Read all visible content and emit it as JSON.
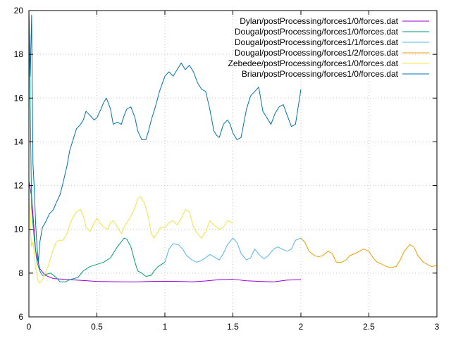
{
  "chart_data": {
    "type": "line",
    "title": "",
    "xlabel": "",
    "ylabel": "",
    "xlim": [
      0,
      3
    ],
    "ylim": [
      6,
      20
    ],
    "xticks": [
      "0",
      "0.5",
      "1",
      "1.5",
      "2",
      "2.5",
      "3"
    ],
    "yticks": [
      "6",
      "8",
      "10",
      "12",
      "14",
      "16",
      "18",
      "20"
    ],
    "grid": true,
    "legend_position": "top-right",
    "series": [
      {
        "name": "Dylan/postProcessing/forces1/0/forces.dat",
        "color": "#9400d3",
        "x": [
          0,
          0.02,
          0.05,
          0.08,
          0.12,
          0.18,
          0.25,
          0.3,
          0.35,
          0.4,
          0.5,
          0.6,
          0.7,
          0.8,
          0.9,
          1.0,
          1.1,
          1.2,
          1.3,
          1.4,
          1.5,
          1.6,
          1.7,
          1.8,
          1.9,
          2.0
        ],
        "y": [
          12.2,
          11.5,
          9.0,
          8.2,
          7.9,
          7.75,
          7.72,
          7.7,
          7.68,
          7.66,
          7.62,
          7.61,
          7.6,
          7.6,
          7.62,
          7.63,
          7.62,
          7.6,
          7.64,
          7.7,
          7.72,
          7.65,
          7.62,
          7.6,
          7.68,
          7.7
        ]
      },
      {
        "name": "Dougal/postProcessing/forces1/0/forces.dat",
        "color": "#009e73",
        "x": [
          0,
          0.02,
          0.04,
          0.06,
          0.08,
          0.1,
          0.13,
          0.16,
          0.2,
          0.23,
          0.27,
          0.3,
          0.33,
          0.36,
          0.4,
          0.45,
          0.5,
          0.55,
          0.6,
          0.65,
          0.7,
          0.72,
          0.75,
          0.78,
          0.8,
          0.83,
          0.86,
          0.9,
          0.92,
          0.95,
          1.0
        ],
        "y": [
          20.0,
          11.0,
          9.5,
          8.5,
          8.1,
          7.9,
          7.95,
          8.0,
          7.8,
          7.6,
          7.6,
          7.7,
          7.75,
          7.8,
          8.1,
          8.3,
          8.4,
          8.5,
          8.7,
          9.2,
          9.6,
          9.55,
          9.2,
          8.5,
          8.1,
          8.0,
          7.85,
          7.9,
          8.1,
          8.3,
          8.5
        ]
      },
      {
        "name": "Dougal/postProcessing/forces1/1/forces.dat",
        "color": "#56b4e9",
        "x": [
          1.0,
          1.03,
          1.06,
          1.1,
          1.13,
          1.16,
          1.2,
          1.23,
          1.26,
          1.3,
          1.33,
          1.36,
          1.4,
          1.43,
          1.46,
          1.5,
          1.53,
          1.56,
          1.6,
          1.63,
          1.66,
          1.7,
          1.73,
          1.76,
          1.8,
          1.83,
          1.86,
          1.9,
          1.93,
          1.96,
          2.0
        ],
        "y": [
          8.5,
          9.1,
          9.35,
          9.3,
          9.1,
          8.8,
          8.6,
          8.5,
          8.55,
          8.7,
          8.85,
          8.75,
          8.6,
          8.9,
          9.3,
          9.6,
          9.4,
          8.9,
          8.6,
          8.7,
          9.1,
          8.8,
          8.65,
          8.8,
          9.1,
          9.2,
          9.1,
          9.0,
          9.1,
          9.5,
          9.6
        ]
      },
      {
        "name": "Dougal/postProcessing/forces1/2/forces.dat",
        "color": "#e69f00",
        "x": [
          2.0,
          2.03,
          2.06,
          2.1,
          2.13,
          2.16,
          2.2,
          2.23,
          2.26,
          2.3,
          2.33,
          2.36,
          2.4,
          2.43,
          2.46,
          2.5,
          2.53,
          2.56,
          2.6,
          2.63,
          2.66,
          2.7,
          2.73,
          2.76,
          2.8,
          2.83,
          2.86,
          2.9,
          2.93,
          2.96,
          3.0
        ],
        "y": [
          9.6,
          9.4,
          9.0,
          8.8,
          8.75,
          8.8,
          9.0,
          8.9,
          8.5,
          8.5,
          8.6,
          8.8,
          8.9,
          9.0,
          9.1,
          9.0,
          8.7,
          8.5,
          8.4,
          8.3,
          8.25,
          8.3,
          8.6,
          9.0,
          9.3,
          9.2,
          8.8,
          8.5,
          8.4,
          8.3,
          8.35
        ]
      },
      {
        "name": "Zebedee/postProcessing/forces1/0/forces.dat",
        "color": "#f0e442",
        "x": [
          0,
          0.01,
          0.02,
          0.03,
          0.04,
          0.05,
          0.06,
          0.07,
          0.08,
          0.1,
          0.12,
          0.14,
          0.16,
          0.18,
          0.2,
          0.22,
          0.25,
          0.28,
          0.3,
          0.32,
          0.35,
          0.38,
          0.4,
          0.42,
          0.45,
          0.48,
          0.5,
          0.52,
          0.55,
          0.58,
          0.6,
          0.62,
          0.65,
          0.68,
          0.7,
          0.72,
          0.75,
          0.78,
          0.8,
          0.82,
          0.85,
          0.88,
          0.9,
          0.92,
          0.95,
          0.97,
          1.0,
          1.03,
          1.06,
          1.09,
          1.12,
          1.15,
          1.18,
          1.21,
          1.24,
          1.27,
          1.3,
          1.33,
          1.36,
          1.4,
          1.43,
          1.46,
          1.5
        ],
        "y": [
          12.0,
          10.0,
          9.2,
          9.4,
          8.9,
          8.2,
          7.9,
          7.6,
          7.55,
          7.7,
          8.0,
          8.3,
          8.7,
          9.1,
          9.4,
          9.5,
          9.5,
          9.8,
          10.2,
          10.5,
          10.8,
          10.9,
          10.6,
          10.1,
          9.9,
          10.3,
          10.5,
          10.3,
          10.1,
          10.0,
          10.3,
          10.4,
          10.1,
          9.8,
          10.1,
          10.3,
          10.6,
          11.0,
          11.4,
          11.5,
          11.2,
          10.5,
          9.8,
          9.6,
          9.9,
          10.1,
          10.1,
          10.3,
          10.4,
          10.2,
          10.5,
          10.9,
          10.8,
          10.1,
          9.8,
          9.6,
          9.9,
          10.4,
          10.2,
          10.0,
          10.1,
          10.4,
          10.3
        ]
      },
      {
        "name": "Brian/postProcessing/forces1/0/forces.dat",
        "color": "#0072b2",
        "x": [
          0,
          0.01,
          0.02,
          0.03,
          0.04,
          0.05,
          0.06,
          0.07,
          0.08,
          0.1,
          0.12,
          0.15,
          0.18,
          0.2,
          0.23,
          0.25,
          0.28,
          0.3,
          0.33,
          0.35,
          0.38,
          0.4,
          0.42,
          0.45,
          0.48,
          0.5,
          0.53,
          0.55,
          0.57,
          0.6,
          0.62,
          0.65,
          0.68,
          0.7,
          0.72,
          0.75,
          0.78,
          0.8,
          0.83,
          0.86,
          0.88,
          0.9,
          0.93,
          0.96,
          1.0,
          1.03,
          1.06,
          1.09,
          1.12,
          1.15,
          1.18,
          1.21,
          1.24,
          1.27,
          1.3,
          1.33,
          1.36,
          1.38,
          1.4,
          1.43,
          1.46,
          1.48,
          1.5,
          1.53,
          1.56,
          1.6,
          1.63,
          1.66,
          1.69,
          1.72,
          1.75,
          1.78,
          1.81,
          1.84,
          1.87,
          1.9,
          1.93,
          1.96,
          2.0
        ],
        "y": [
          20.0,
          17.0,
          19.8,
          13.0,
          11.8,
          10.2,
          9.2,
          8.5,
          9.4,
          10.1,
          10.3,
          10.7,
          10.9,
          11.2,
          11.6,
          12.1,
          12.9,
          13.6,
          14.2,
          14.6,
          14.8,
          15.0,
          15.4,
          15.2,
          15.0,
          15.1,
          15.5,
          15.8,
          16.0,
          15.5,
          14.8,
          14.9,
          14.8,
          15.2,
          15.5,
          15.6,
          15.1,
          14.5,
          14.1,
          14.1,
          14.5,
          15.0,
          15.6,
          16.3,
          17.0,
          17.2,
          17.0,
          17.3,
          17.6,
          17.3,
          17.5,
          17.2,
          16.7,
          16.4,
          16.3,
          15.5,
          14.5,
          14.3,
          14.2,
          14.8,
          15.0,
          14.8,
          14.4,
          14.1,
          14.2,
          15.5,
          16.1,
          16.3,
          16.5,
          15.4,
          15.1,
          14.8,
          15.3,
          15.6,
          15.7,
          15.2,
          14.7,
          14.8,
          16.4
        ]
      }
    ]
  }
}
